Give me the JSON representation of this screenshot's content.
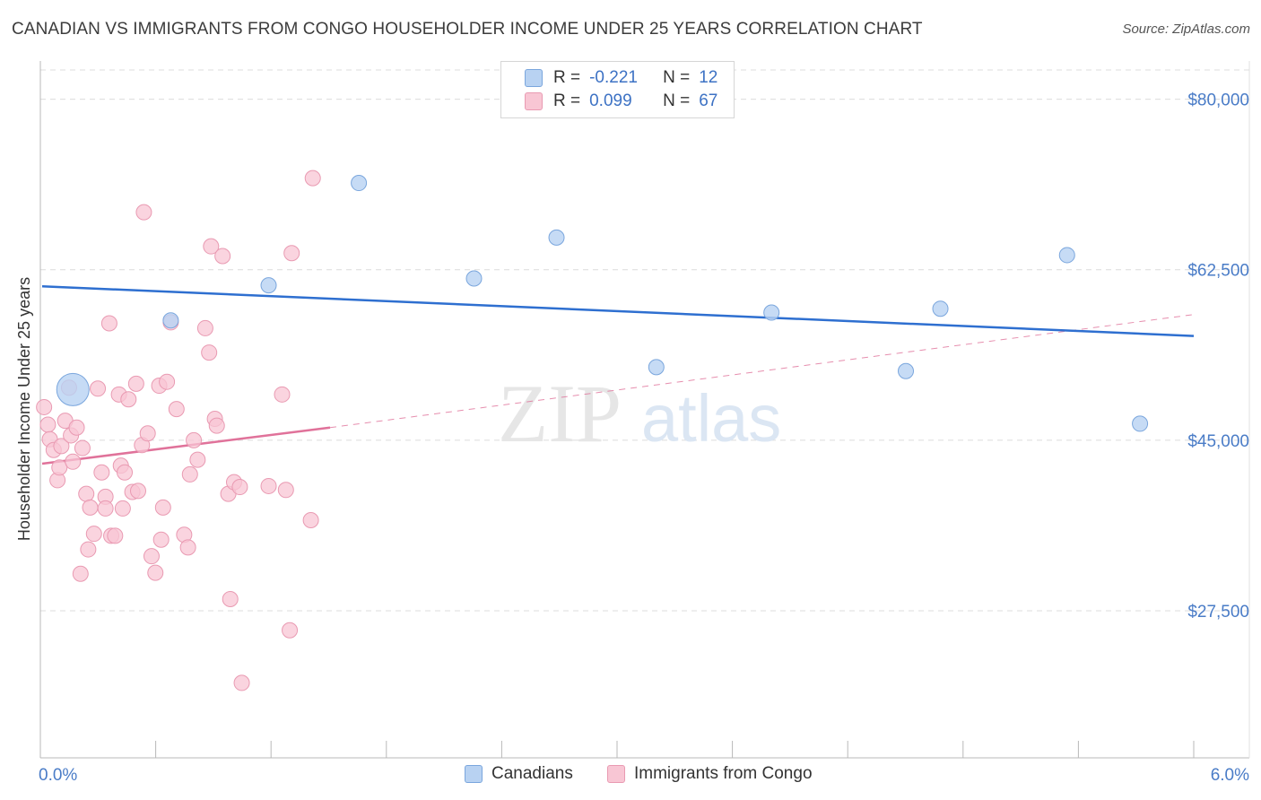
{
  "title": "CANADIAN VS IMMIGRANTS FROM CONGO HOUSEHOLDER INCOME UNDER 25 YEARS CORRELATION CHART",
  "source": "Source: ZipAtlas.com",
  "watermark": {
    "zip": "ZIP",
    "atlas": "atlas"
  },
  "legend": {
    "rows": [
      {
        "r_label": "R =",
        "r_value": "-0.221",
        "n_label": "N =",
        "n_value": "12"
      },
      {
        "r_label": "R =",
        "r_value": "0.099",
        "n_label": "N =",
        "n_value": "67"
      }
    ]
  },
  "bottom_legend": {
    "series1": "Canadians",
    "series2": "Immigrants from Congo"
  },
  "colors": {
    "canadians_fill": "#b8d2f2",
    "canadians_stroke": "#7aa6dd",
    "canadians_line": "#2e6fd0",
    "congo_fill": "#f8c6d4",
    "congo_stroke": "#e99ab2",
    "congo_line": "#e0729a",
    "axis_text": "#4a7cc7",
    "grid": "#dcdcdc"
  },
  "chart_data": {
    "type": "scatter",
    "title": "CANADIAN VS IMMIGRANTS FROM CONGO HOUSEHOLDER INCOME UNDER 25 YEARS CORRELATION CHART",
    "xlabel": "",
    "ylabel": "Householder Income Under 25 years",
    "xlim": [
      0.0,
      6.0
    ],
    "ylim": [
      12500,
      83000
    ],
    "x_tick_labels": [
      "0.0%",
      "6.0%"
    ],
    "y_ticks": [
      27500,
      45000,
      62500,
      80000
    ],
    "y_tick_labels": [
      "$27,500",
      "$45,000",
      "$62,500",
      "$80,000"
    ],
    "series": [
      {
        "name": "Canadians",
        "points": [
          {
            "x": 0.16,
            "y": 50200,
            "big": true
          },
          {
            "x": 0.67,
            "y": 57300
          },
          {
            "x": 1.18,
            "y": 60900
          },
          {
            "x": 1.65,
            "y": 71400
          },
          {
            "x": 2.25,
            "y": 61600
          },
          {
            "x": 2.68,
            "y": 65800
          },
          {
            "x": 3.2,
            "y": 52500
          },
          {
            "x": 3.8,
            "y": 58100
          },
          {
            "x": 4.5,
            "y": 52100
          },
          {
            "x": 4.68,
            "y": 58500
          },
          {
            "x": 5.34,
            "y": 64000
          },
          {
            "x": 5.72,
            "y": 46700
          }
        ],
        "trend": {
          "x0": 0.0,
          "y0": 60800,
          "x1": 6.0,
          "y1": 55700
        }
      },
      {
        "name": "Immigrants from Congo",
        "points": [
          {
            "x": 0.01,
            "y": 48400
          },
          {
            "x": 0.03,
            "y": 46600
          },
          {
            "x": 0.04,
            "y": 45100
          },
          {
            "x": 0.06,
            "y": 44000
          },
          {
            "x": 0.08,
            "y": 40900
          },
          {
            "x": 0.09,
            "y": 42200
          },
          {
            "x": 0.1,
            "y": 44400
          },
          {
            "x": 0.12,
            "y": 47000
          },
          {
            "x": 0.14,
            "y": 50400
          },
          {
            "x": 0.15,
            "y": 45500
          },
          {
            "x": 0.16,
            "y": 42800
          },
          {
            "x": 0.18,
            "y": 46300
          },
          {
            "x": 0.2,
            "y": 31300
          },
          {
            "x": 0.21,
            "y": 44200
          },
          {
            "x": 0.23,
            "y": 39500
          },
          {
            "x": 0.24,
            "y": 33800
          },
          {
            "x": 0.25,
            "y": 38100
          },
          {
            "x": 0.27,
            "y": 35400
          },
          {
            "x": 0.29,
            "y": 50300
          },
          {
            "x": 0.31,
            "y": 41700
          },
          {
            "x": 0.33,
            "y": 39200
          },
          {
            "x": 0.33,
            "y": 38000
          },
          {
            "x": 0.35,
            "y": 57000
          },
          {
            "x": 0.36,
            "y": 35200
          },
          {
            "x": 0.38,
            "y": 35200
          },
          {
            "x": 0.4,
            "y": 49700
          },
          {
            "x": 0.41,
            "y": 42400
          },
          {
            "x": 0.42,
            "y": 38000
          },
          {
            "x": 0.43,
            "y": 41700
          },
          {
            "x": 0.45,
            "y": 49200
          },
          {
            "x": 0.47,
            "y": 39700
          },
          {
            "x": 0.49,
            "y": 50800
          },
          {
            "x": 0.5,
            "y": 39800
          },
          {
            "x": 0.52,
            "y": 44500
          },
          {
            "x": 0.53,
            "y": 68400
          },
          {
            "x": 0.55,
            "y": 45700
          },
          {
            "x": 0.57,
            "y": 33100
          },
          {
            "x": 0.59,
            "y": 31400
          },
          {
            "x": 0.61,
            "y": 50600
          },
          {
            "x": 0.62,
            "y": 34800
          },
          {
            "x": 0.63,
            "y": 38100
          },
          {
            "x": 0.65,
            "y": 51000
          },
          {
            "x": 0.67,
            "y": 57100
          },
          {
            "x": 0.7,
            "y": 48200
          },
          {
            "x": 0.74,
            "y": 35300
          },
          {
            "x": 0.76,
            "y": 34000
          },
          {
            "x": 0.77,
            "y": 41500
          },
          {
            "x": 0.79,
            "y": 45000
          },
          {
            "x": 0.81,
            "y": 43000
          },
          {
            "x": 0.85,
            "y": 56500
          },
          {
            "x": 0.87,
            "y": 54000
          },
          {
            "x": 0.88,
            "y": 64900
          },
          {
            "x": 0.9,
            "y": 47200
          },
          {
            "x": 0.91,
            "y": 46500
          },
          {
            "x": 0.94,
            "y": 63900
          },
          {
            "x": 0.97,
            "y": 39500
          },
          {
            "x": 0.98,
            "y": 28700
          },
          {
            "x": 1.0,
            "y": 40700
          },
          {
            "x": 1.03,
            "y": 40200
          },
          {
            "x": 1.04,
            "y": 20100
          },
          {
            "x": 1.18,
            "y": 40300
          },
          {
            "x": 1.25,
            "y": 49700
          },
          {
            "x": 1.27,
            "y": 39900
          },
          {
            "x": 1.29,
            "y": 25500
          },
          {
            "x": 1.3,
            "y": 64200
          },
          {
            "x": 1.4,
            "y": 36800
          },
          {
            "x": 1.41,
            "y": 71900
          }
        ],
        "trend": {
          "x0": 0.0,
          "y0": 42600,
          "x1": 1.5,
          "y1": 46300,
          "dash_x1": 6.0,
          "dash_y1": 57900
        }
      }
    ]
  }
}
